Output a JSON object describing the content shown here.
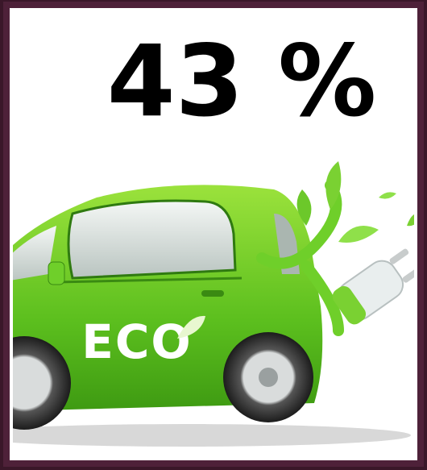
{
  "headline": {
    "text": "43 %"
  },
  "car": {
    "label": "ECO"
  }
}
